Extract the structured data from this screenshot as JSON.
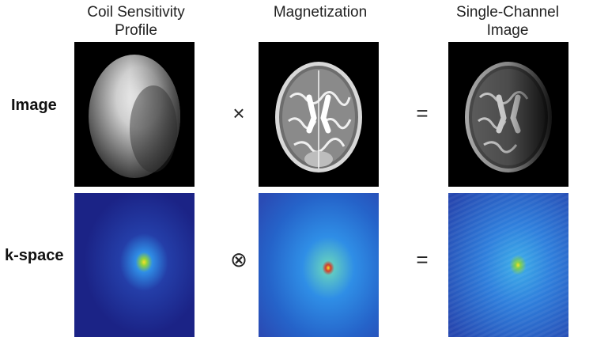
{
  "columns": [
    {
      "title": "Coil Sensitivity\nProfile"
    },
    {
      "title": "Magnetization"
    },
    {
      "title": "Single-Channel\nImage"
    }
  ],
  "rows": [
    {
      "label": "Image"
    },
    {
      "label": "k-space"
    }
  ],
  "operators": {
    "image_multiply": "×",
    "image_equals": "=",
    "kspace_convolve": "⊗",
    "kspace_equals": "="
  },
  "colors": {
    "kspace_low": "#1f2d9a",
    "kspace_mid": "#2f8ee6",
    "kspace_high": "#f7e02a",
    "background": "#ffffff"
  }
}
